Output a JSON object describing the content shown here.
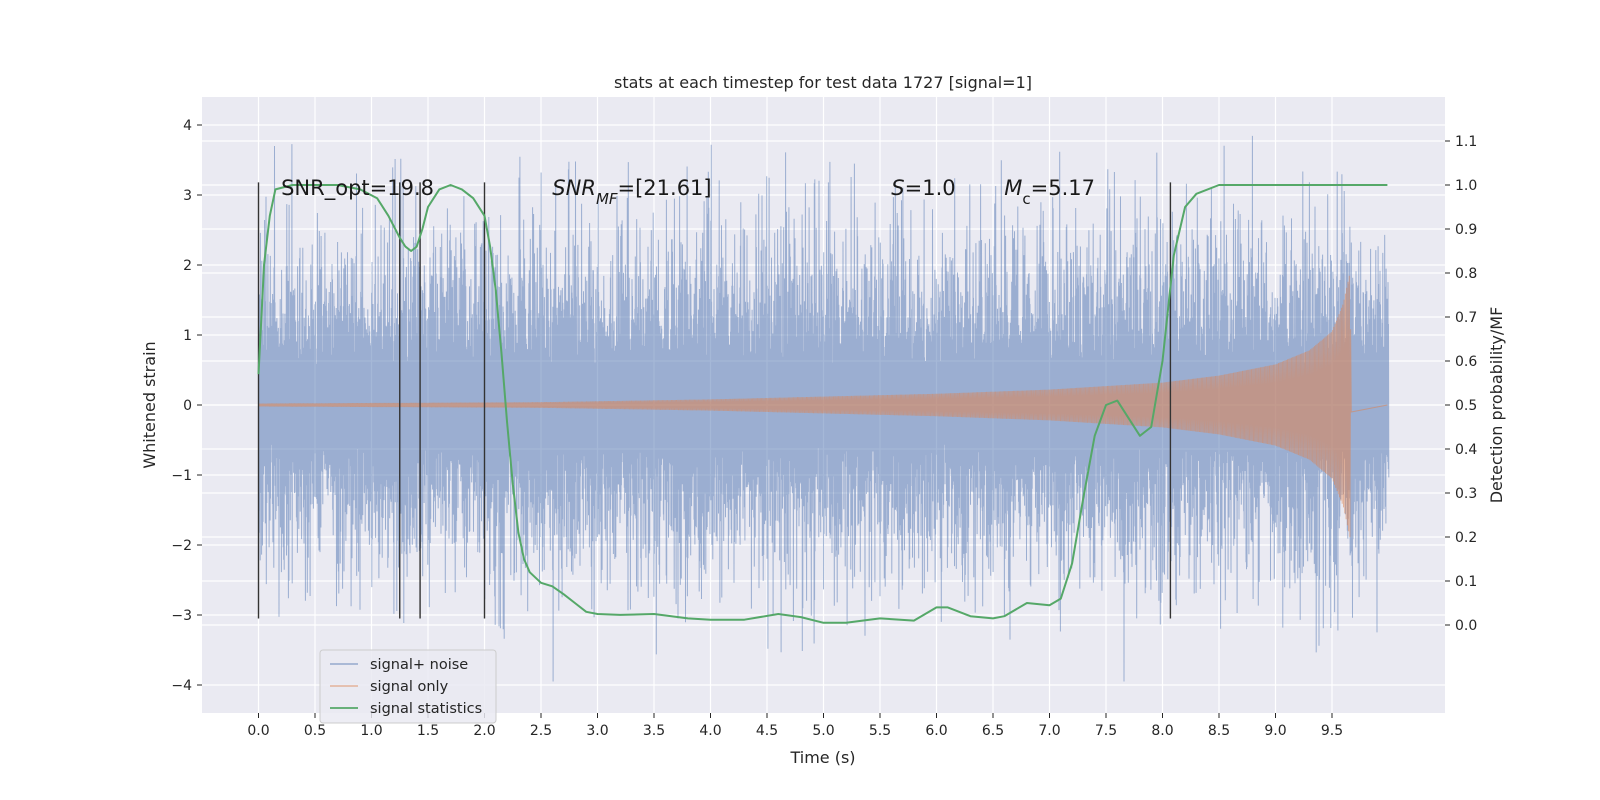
{
  "chart_data": {
    "type": "line",
    "title": "stats at each timestep for test data 1727 [signal=1]",
    "xlabel": "Time (s)",
    "ylabel_left": "Whitened strain",
    "ylabel_right": "Detection probability/MF",
    "xlim": [
      -0.5,
      10.5
    ],
    "ylim_left": [
      -4.4,
      4.4
    ],
    "ylim_right": [
      -0.2,
      1.2
    ],
    "x_ticks": [
      0.0,
      0.5,
      1.0,
      1.5,
      2.0,
      2.5,
      3.0,
      3.5,
      4.0,
      4.5,
      5.0,
      5.5,
      6.0,
      6.5,
      7.0,
      7.5,
      8.0,
      8.5,
      9.0,
      9.5
    ],
    "x_tick_labels": [
      "0.0",
      "0.5",
      "1.0",
      "1.5",
      "2.0",
      "2.5",
      "3.0",
      "3.5",
      "4.0",
      "4.5",
      "5.0",
      "5.5",
      "6.0",
      "6.5",
      "7.0",
      "7.5",
      "8.0",
      "8.5",
      "9.0",
      "9.5"
    ],
    "y_left_ticks": [
      4,
      3,
      2,
      1,
      0,
      -1,
      -2,
      -3,
      -4
    ],
    "y_left_tick_labels": [
      "4",
      "3",
      "2",
      "1",
      "0",
      "−1",
      "−2",
      "−3",
      "−4"
    ],
    "y_right_ticks": [
      1.1,
      1.0,
      0.9,
      0.8,
      0.7,
      0.6,
      0.5,
      0.4,
      0.3,
      0.2,
      0.1,
      0.0
    ],
    "y_right_tick_labels": [
      "1.1",
      "1.0",
      "0.9",
      "0.8",
      "0.7",
      "0.6",
      "0.5",
      "0.4",
      "0.3",
      "0.2",
      "0.1",
      "0.0"
    ],
    "grid": true,
    "legend_position": "bottom-left",
    "series": [
      {
        "name": "signal+ noise",
        "axis": "left",
        "color": "#4c72b0",
        "style": "dense-noise",
        "x_range": [
          0.0,
          10.0
        ],
        "amplitude_std": 1.05,
        "peak_min": -3.9,
        "peak_max": 4.05
      },
      {
        "name": "signal only",
        "axis": "left",
        "color": "#dd8452",
        "style": "chirp",
        "x_range": [
          0.0,
          9.67
        ],
        "envelope": [
          [
            0.0,
            0.02
          ],
          [
            2.5,
            0.04
          ],
          [
            4.0,
            0.08
          ],
          [
            5.0,
            0.12
          ],
          [
            6.0,
            0.16
          ],
          [
            7.0,
            0.22
          ],
          [
            8.0,
            0.32
          ],
          [
            8.5,
            0.42
          ],
          [
            9.0,
            0.58
          ],
          [
            9.3,
            0.78
          ],
          [
            9.5,
            1.05
          ],
          [
            9.6,
            1.45
          ],
          [
            9.66,
            1.9
          ],
          [
            9.67,
            0.0
          ]
        ]
      },
      {
        "name": "signal statistics",
        "axis": "right",
        "color": "#55a868",
        "style": "line",
        "x": [
          0.0,
          0.05,
          0.1,
          0.15,
          0.3,
          0.5,
          0.7,
          0.9,
          1.05,
          1.15,
          1.25,
          1.3,
          1.35,
          1.4,
          1.45,
          1.5,
          1.6,
          1.7,
          1.8,
          1.9,
          2.0,
          2.05,
          2.1,
          2.15,
          2.2,
          2.25,
          2.3,
          2.35,
          2.4,
          2.5,
          2.6,
          2.7,
          2.8,
          2.9,
          3.0,
          3.2,
          3.5,
          3.8,
          4.0,
          4.3,
          4.6,
          4.8,
          5.0,
          5.2,
          5.5,
          5.8,
          6.0,
          6.1,
          6.3,
          6.5,
          6.6,
          6.8,
          7.0,
          7.1,
          7.2,
          7.3,
          7.4,
          7.5,
          7.6,
          7.7,
          7.8,
          7.9,
          8.0,
          8.1,
          8.2,
          8.3,
          8.5,
          9.0,
          9.5,
          9.99
        ],
        "y": [
          0.57,
          0.82,
          0.93,
          0.99,
          1.0,
          1.0,
          1.0,
          0.99,
          0.97,
          0.93,
          0.88,
          0.86,
          0.85,
          0.86,
          0.9,
          0.95,
          0.99,
          1.0,
          0.99,
          0.97,
          0.93,
          0.86,
          0.76,
          0.62,
          0.46,
          0.32,
          0.21,
          0.15,
          0.12,
          0.096,
          0.088,
          0.07,
          0.05,
          0.03,
          0.025,
          0.023,
          0.025,
          0.015,
          0.012,
          0.012,
          0.025,
          0.018,
          0.005,
          0.005,
          0.015,
          0.01,
          0.04,
          0.04,
          0.02,
          0.015,
          0.02,
          0.05,
          0.045,
          0.06,
          0.14,
          0.29,
          0.43,
          0.5,
          0.51,
          0.47,
          0.43,
          0.45,
          0.6,
          0.84,
          0.95,
          0.98,
          1.0,
          1.0,
          1.0,
          1.0
        ]
      }
    ],
    "vlines": {
      "x": [
        0.0,
        1.25,
        1.43,
        2.0,
        8.07
      ],
      "y_range": [
        -3.05,
        3.18
      ],
      "color": "#333333"
    },
    "annotations": [
      {
        "x": 0.2,
        "y": 3.1,
        "parts": [
          {
            "t": "SNR_opt=19.8"
          }
        ]
      },
      {
        "x": 2.6,
        "y": 3.1,
        "parts": [
          {
            "t": "SNR",
            "i": true
          },
          {
            "t": "MF",
            "i": true,
            "sub": true
          },
          {
            "t": "=[21.61]"
          }
        ]
      },
      {
        "x": 5.6,
        "y": 3.1,
        "parts": [
          {
            "t": "S",
            "i": true
          },
          {
            "t": "=1.0"
          }
        ]
      },
      {
        "x": 6.6,
        "y": 3.1,
        "parts": [
          {
            "t": "M",
            "i": true
          },
          {
            "t": "c",
            "sub": true
          },
          {
            "t": "=5.17"
          }
        ]
      }
    ]
  }
}
